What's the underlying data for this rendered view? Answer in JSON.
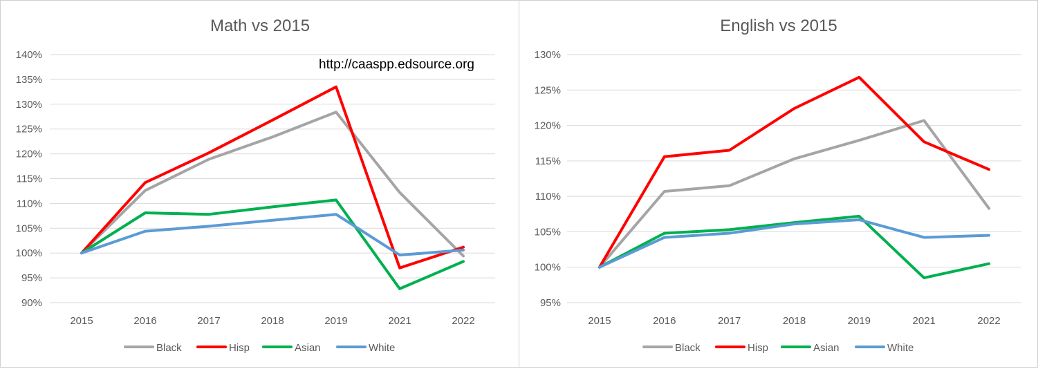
{
  "chart_data": [
    {
      "type": "line",
      "title": "Math vs 2015",
      "annotation": "http://caaspp.edsource.org",
      "categories": [
        "2015",
        "2016",
        "2017",
        "2018",
        "2019",
        "2021",
        "2022"
      ],
      "ylim": [
        0.9,
        1.4
      ],
      "yticks": [
        0.9,
        0.95,
        1.0,
        1.05,
        1.1,
        1.15,
        1.2,
        1.25,
        1.3,
        1.35,
        1.4
      ],
      "ytick_labels": [
        "90%",
        "95%",
        "100%",
        "105%",
        "110%",
        "115%",
        "120%",
        "125%",
        "130%",
        "135%",
        "140%"
      ],
      "grid": true,
      "legend_position": "bottom",
      "series": [
        {
          "name": "Black",
          "color": "#a5a5a5",
          "values": [
            1.0,
            1.126,
            1.189,
            1.234,
            1.284,
            1.122,
            0.994
          ]
        },
        {
          "name": "Hisp",
          "color": "#ff0000",
          "values": [
            1.0,
            1.142,
            1.202,
            1.268,
            1.335,
            0.97,
            1.012
          ]
        },
        {
          "name": "Asian",
          "color": "#00b050",
          "values": [
            1.0,
            1.081,
            1.078,
            1.093,
            1.107,
            0.928,
            0.983
          ]
        },
        {
          "name": "White",
          "color": "#5b9bd5",
          "values": [
            1.0,
            1.044,
            1.054,
            1.066,
            1.078,
            0.996,
            1.006
          ]
        }
      ]
    },
    {
      "type": "line",
      "title": "English vs 2015",
      "categories": [
        "2015",
        "2016",
        "2017",
        "2018",
        "2019",
        "2021",
        "2022"
      ],
      "ylim": [
        0.95,
        1.3
      ],
      "yticks": [
        0.95,
        1.0,
        1.05,
        1.1,
        1.15,
        1.2,
        1.25,
        1.3
      ],
      "ytick_labels": [
        "95%",
        "100%",
        "105%",
        "110%",
        "115%",
        "120%",
        "125%",
        "130%"
      ],
      "grid": true,
      "legend_position": "bottom",
      "series": [
        {
          "name": "Black",
          "color": "#a5a5a5",
          "values": [
            1.0,
            1.107,
            1.115,
            1.153,
            1.179,
            1.207,
            1.083
          ]
        },
        {
          "name": "Hisp",
          "color": "#ff0000",
          "values": [
            1.0,
            1.156,
            1.165,
            1.224,
            1.268,
            1.177,
            1.138
          ]
        },
        {
          "name": "Asian",
          "color": "#00b050",
          "values": [
            1.0,
            1.048,
            1.053,
            1.063,
            1.072,
            0.985,
            1.005
          ]
        },
        {
          "name": "White",
          "color": "#5b9bd5",
          "values": [
            1.0,
            1.042,
            1.048,
            1.061,
            1.067,
            1.042,
            1.045
          ]
        }
      ]
    }
  ]
}
